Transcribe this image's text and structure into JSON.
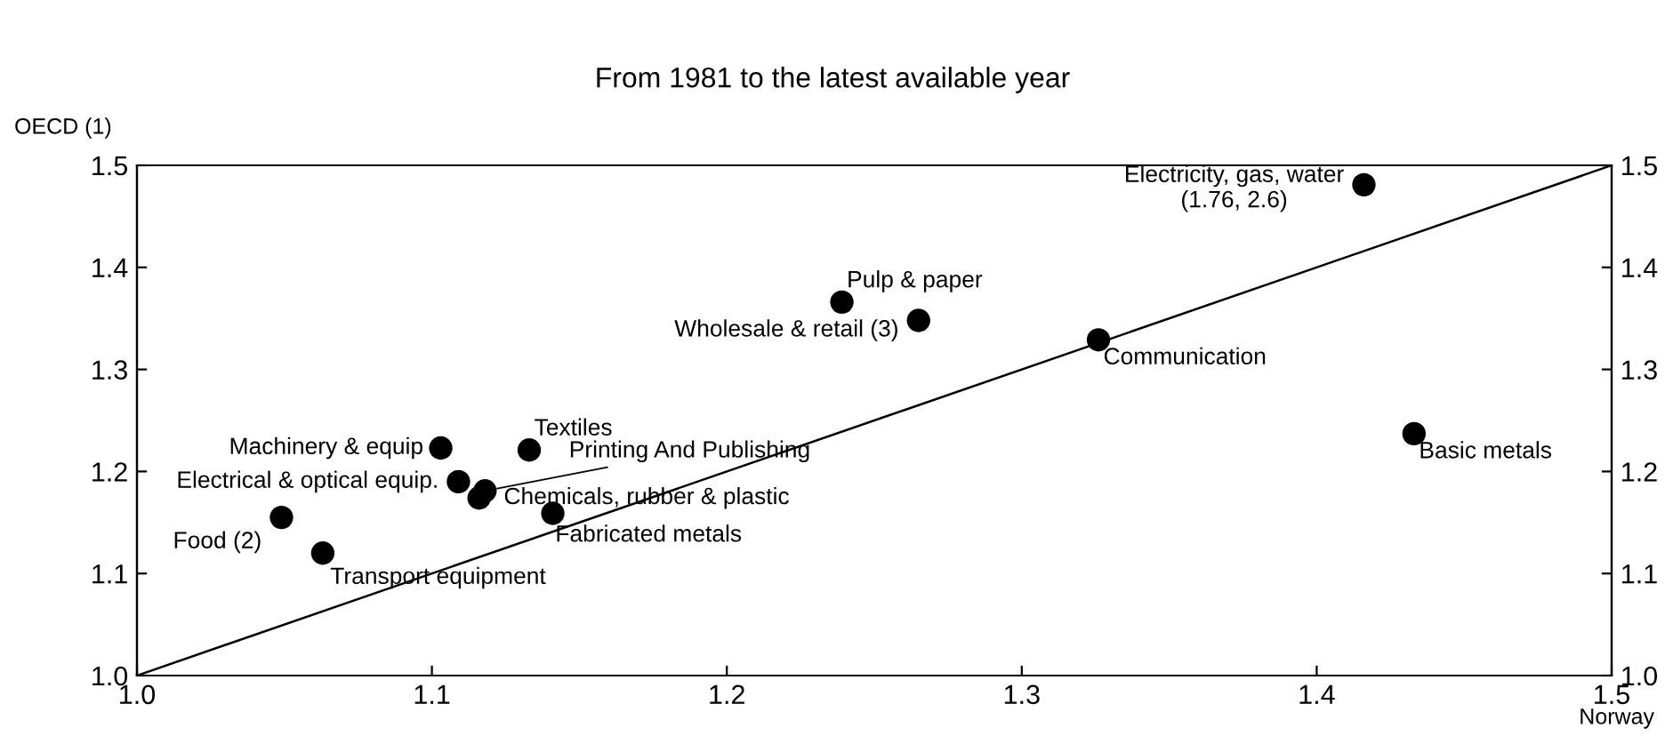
{
  "chart_data": {
    "type": "scatter",
    "title": "From 1981 to the latest available year",
    "xlabel": "Norway",
    "ylabel": "OECD (1)",
    "series": [
      {
        "marker": "circle",
        "color": "#000000",
        "x": [
          1.416,
          1.239,
          1.265,
          1.326,
          1.433,
          1.103,
          1.133,
          1.109,
          1.118,
          1.116,
          1.141,
          1.049,
          1.063
        ],
        "values": [
          1.481,
          1.366,
          1.348,
          1.329,
          1.237,
          1.223,
          1.221,
          1.19,
          1.181,
          1.174,
          1.159,
          1.155,
          1.12
        ]
      },
      {
        "type": "line",
        "marker": "none",
        "color": "#000000",
        "x": [
          1.0,
          1.5
        ],
        "values": [
          1.0,
          1.5
        ]
      }
    ],
    "annotations": [
      {
        "text": "Electricity, gas, water\n(1.76, 2.6)",
        "x": 1.416,
        "y": 1.481
      },
      {
        "text": "Pulp & paper",
        "x": 1.239,
        "y": 1.366
      },
      {
        "text": "Wholesale & retail (3)",
        "x": 1.265,
        "y": 1.348
      },
      {
        "text": "Communication",
        "x": 1.326,
        "y": 1.329
      },
      {
        "text": "Basic metals",
        "x": 1.433,
        "y": 1.237
      },
      {
        "text": "Machinery & equip",
        "x": 1.103,
        "y": 1.223
      },
      {
        "text": "Textiles",
        "x": 1.133,
        "y": 1.221
      },
      {
        "text": "Electrical & optical equip.",
        "x": 1.109,
        "y": 1.19
      },
      {
        "text": "Printing And Publishing",
        "x": 1.118,
        "y": 1.181
      },
      {
        "text": "Chemicals, rubber & plastic",
        "x": 1.116,
        "y": 1.174
      },
      {
        "text": "Fabricated metals",
        "x": 1.141,
        "y": 1.159
      },
      {
        "text": "Food (2)",
        "x": 1.049,
        "y": 1.155
      },
      {
        "text": "Transport equipment",
        "x": 1.063,
        "y": 1.12
      }
    ],
    "xlim": [
      1.0,
      1.5
    ],
    "xticks": [
      {
        "value": 1.0,
        "label": "1.0"
      },
      1.1,
      1.2,
      1.3,
      1.4,
      1.5
    ],
    "ylim": [
      1.0,
      1.5
    ],
    "yticks": [
      {
        "value": 1.0,
        "label": "1.0"
      },
      1.1,
      1.2,
      1.3,
      1.4,
      1.5
    ],
    "y2lim": [
      1.0,
      1.5
    ],
    "y2ticks": [
      {
        "value": 1.0,
        "label": "1.0"
      },
      1.1,
      1.2,
      1.3,
      1.4,
      1.5
    ]
  }
}
